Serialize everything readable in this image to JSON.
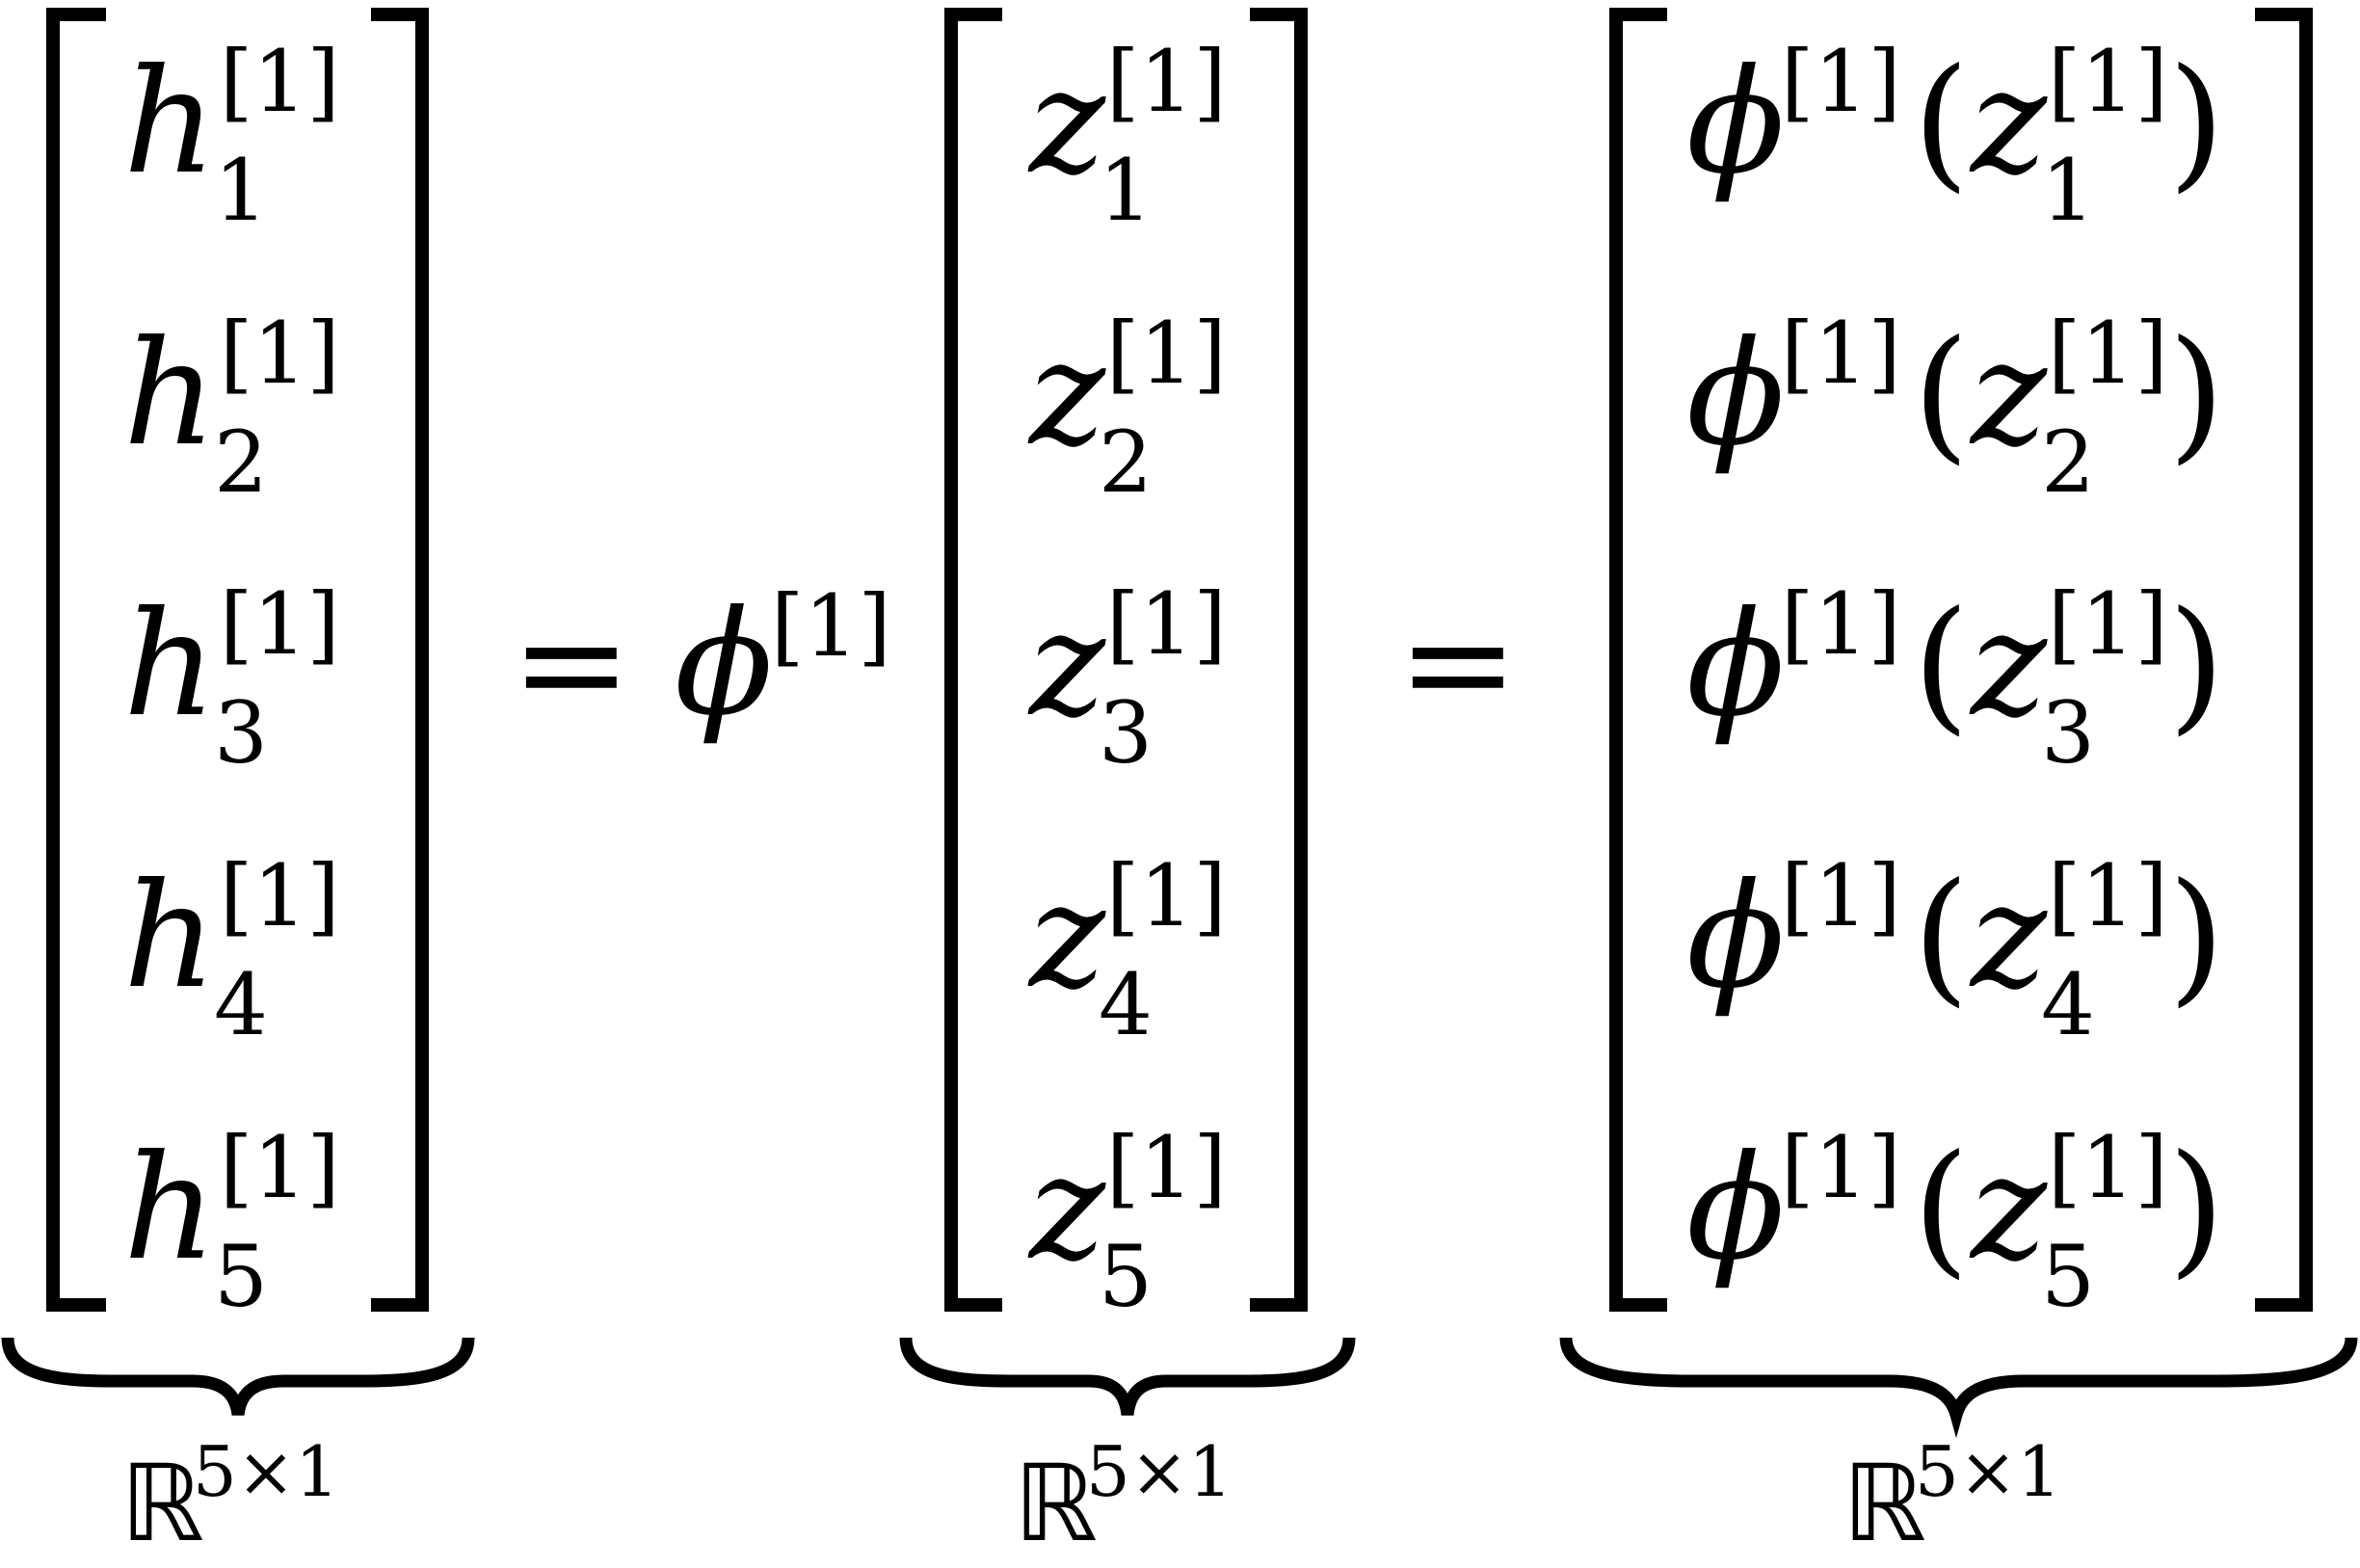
{
  "equation": {
    "lhs": {
      "base": "h",
      "superscript": "[1]",
      "subscripts": [
        "1",
        "2",
        "3",
        "4",
        "5"
      ],
      "underbrace": {
        "set": "ℝ",
        "exponent": "5×1"
      }
    },
    "equals": "=",
    "operator": {
      "symbol": "ϕ",
      "superscript": "[1]"
    },
    "middle": {
      "base": "z",
      "superscript": "[1]",
      "subscripts": [
        "1",
        "2",
        "3",
        "4",
        "5"
      ],
      "underbrace": {
        "set": "ℝ",
        "exponent": "5×1"
      }
    },
    "rhs": {
      "function": "ϕ",
      "function_superscript": "[1]",
      "open_paren": "(",
      "close_paren": ")",
      "argument_base": "z",
      "argument_superscript": "[1]",
      "subscripts": [
        "1",
        "2",
        "3",
        "4",
        "5"
      ],
      "underbrace": {
        "set": "ℝ",
        "exponent": "5×1"
      }
    },
    "color": "#000000"
  }
}
